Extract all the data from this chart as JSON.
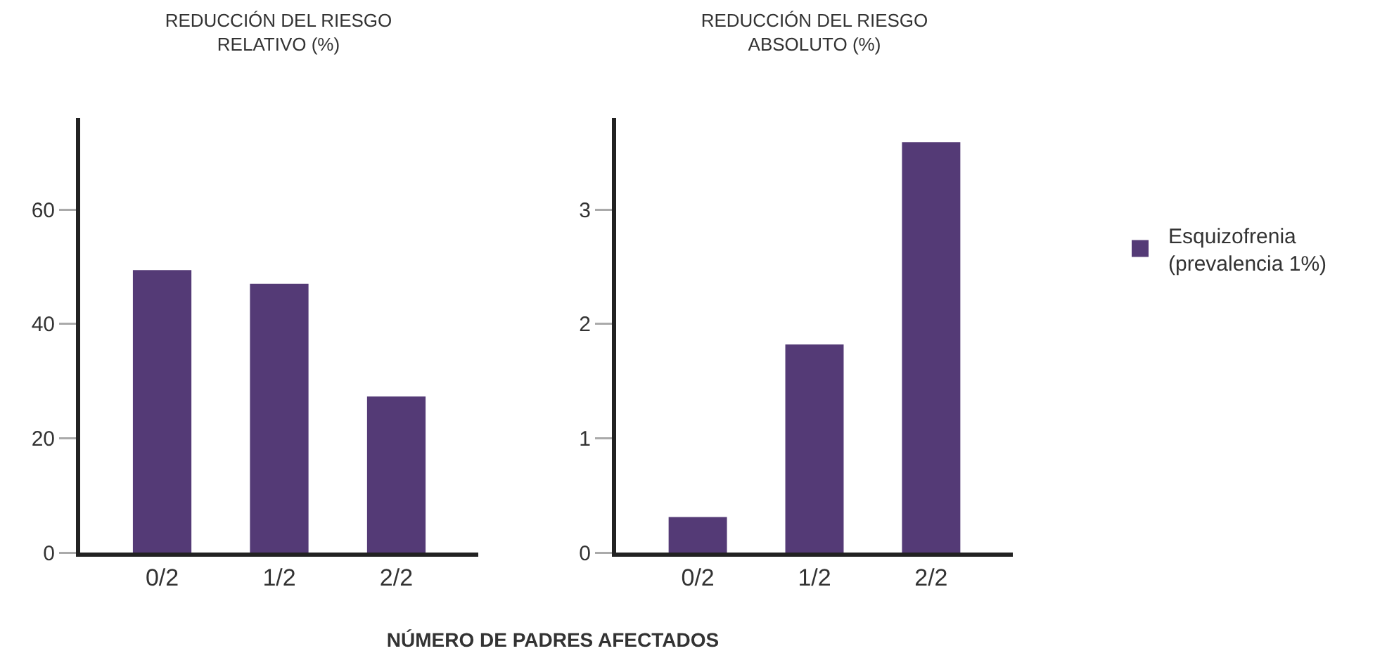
{
  "chart_data": [
    {
      "type": "bar",
      "title": "REDUCCIÓN DEL RIESGO\nRELATIVO (%)",
      "xlabel": "NÚMERO DE PADRES AFECTADOS",
      "categories": [
        "0/2",
        "1/2",
        "2/2"
      ],
      "series": [
        {
          "color": "#543a76",
          "values": [
            49.4,
            47,
            27.3
          ]
        }
      ],
      "ylim": [
        0,
        76
      ],
      "yticks": [
        0,
        20,
        40,
        60
      ],
      "grid": false,
      "legend": false
    },
    {
      "type": "bar",
      "title": "REDUCCIÓN DEL RIESGO\nABSOLUTO (%)",
      "categories": [
        "0/2",
        "1/2",
        "2/2"
      ],
      "series": [
        {
          "name": "Esquizofrenia\n(prevalencia 1%)",
          "color": "#543a76",
          "values": [
            0.31,
            1.82,
            3.59
          ]
        }
      ],
      "ylim": [
        0,
        3.8
      ],
      "yticks": [
        0,
        1,
        2,
        3
      ],
      "grid": false,
      "legend": "right"
    }
  ]
}
